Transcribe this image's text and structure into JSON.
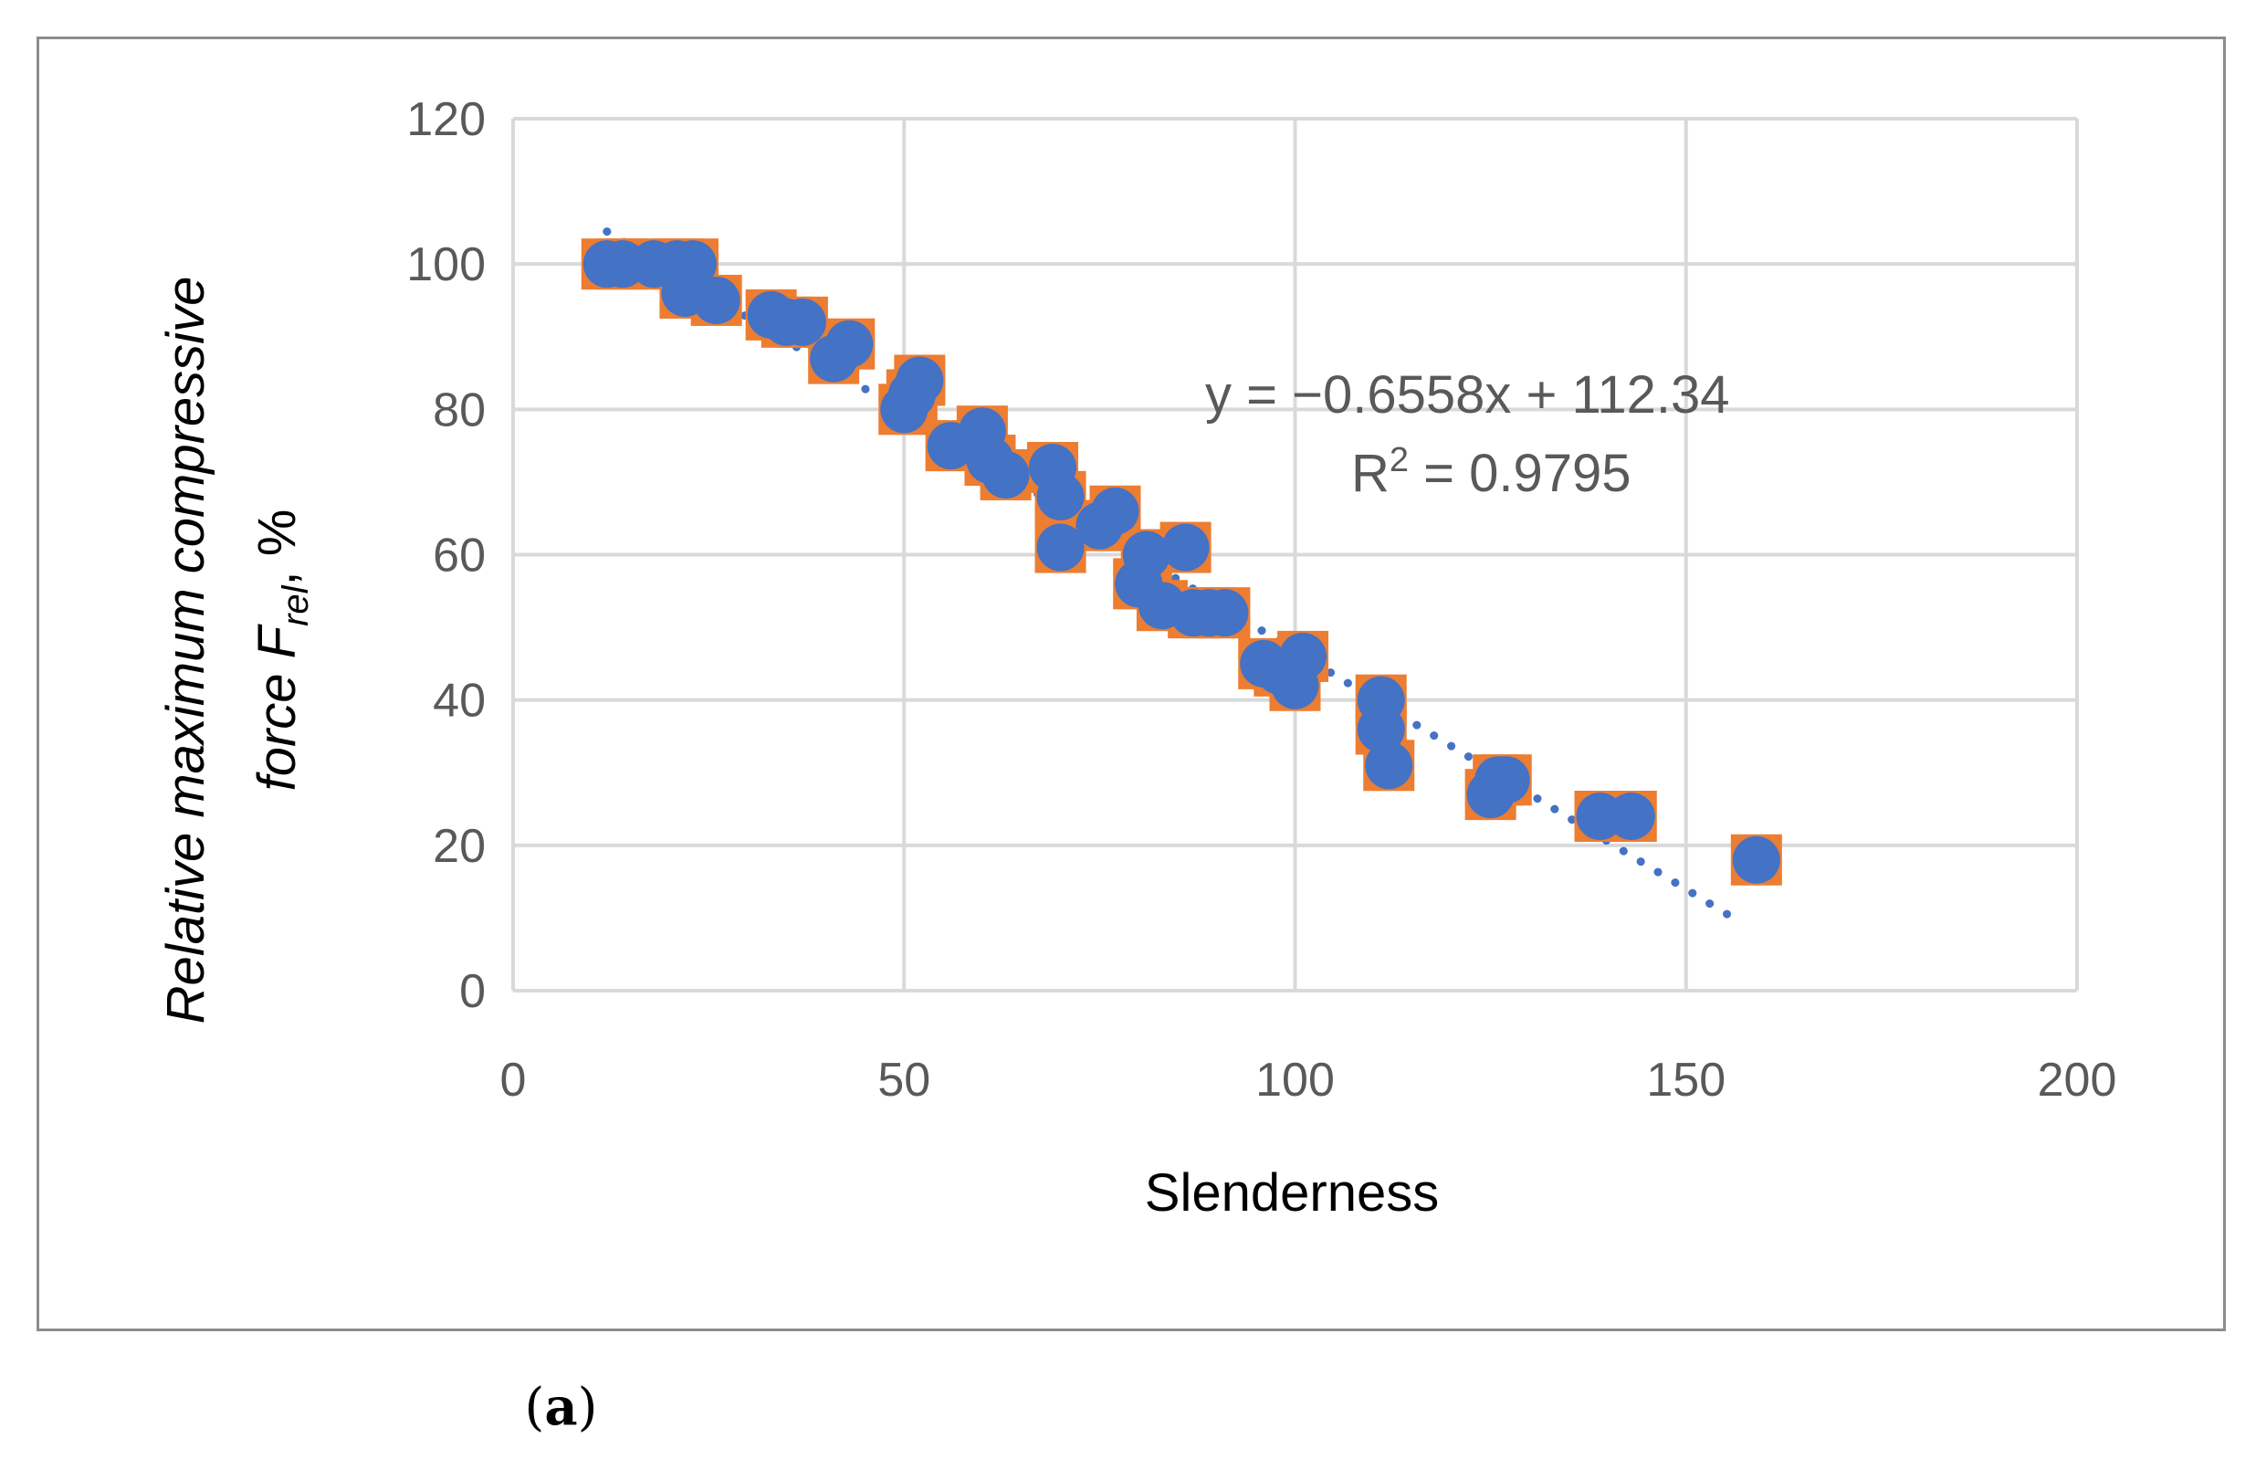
{
  "chart_data": {
    "type": "scatter",
    "xlabel": "Slenderness",
    "ylabel_line1": "Relative maximum compressive",
    "ylabel_line2_prefix": "force  F",
    "ylabel_line2_sub": "rel",
    "ylabel_line2_suffix": ", %",
    "xlim": [
      0,
      200
    ],
    "ylim": [
      0,
      120
    ],
    "xticks": [
      0,
      50,
      100,
      150,
      200
    ],
    "yticks": [
      0,
      20,
      40,
      60,
      80,
      100,
      120
    ],
    "grid": true,
    "colors": {
      "marker_fill": "#4472C4",
      "marker_back": "#ED7D31",
      "trendline": "#4472C4",
      "grid": "#d9d9d9"
    },
    "series": [
      {
        "marker": "circle-over-square",
        "points": [
          [
            12,
            100
          ],
          [
            14,
            100
          ],
          [
            18,
            100
          ],
          [
            21,
            100
          ],
          [
            23,
            100
          ],
          [
            22,
            96
          ],
          [
            26,
            95
          ],
          [
            33,
            93
          ],
          [
            35,
            92
          ],
          [
            37,
            92
          ],
          [
            41,
            87
          ],
          [
            43,
            89
          ],
          [
            50,
            80
          ],
          [
            51,
            82
          ],
          [
            52,
            84
          ],
          [
            56,
            75
          ],
          [
            60,
            77
          ],
          [
            61,
            73
          ],
          [
            63,
            71
          ],
          [
            69,
            72
          ],
          [
            70,
            68
          ],
          [
            70,
            61
          ],
          [
            75,
            64
          ],
          [
            77,
            66
          ],
          [
            80,
            56
          ],
          [
            81,
            60
          ],
          [
            83,
            53
          ],
          [
            86,
            61
          ],
          [
            87,
            52
          ],
          [
            89,
            52
          ],
          [
            91,
            52
          ],
          [
            96,
            45
          ],
          [
            98,
            44
          ],
          [
            100,
            42
          ],
          [
            101,
            46
          ],
          [
            111,
            40
          ],
          [
            111,
            36
          ],
          [
            112,
            31
          ],
          [
            125,
            27
          ],
          [
            126,
            29
          ],
          [
            127,
            29
          ],
          [
            139,
            24
          ],
          [
            143,
            24
          ],
          [
            159,
            18
          ]
        ]
      }
    ],
    "trendline": {
      "style": "dotted",
      "slope": -0.6558,
      "intercept": 112.34,
      "x_range": [
        12,
        157
      ],
      "equation": "y = −0.6558x + 112.34",
      "r2_prefix": "R",
      "r2_sup": "2",
      "r2_suffix": " = 0.9795"
    }
  },
  "panel_label": {
    "open": "(",
    "letter": "a",
    "close": ")"
  }
}
